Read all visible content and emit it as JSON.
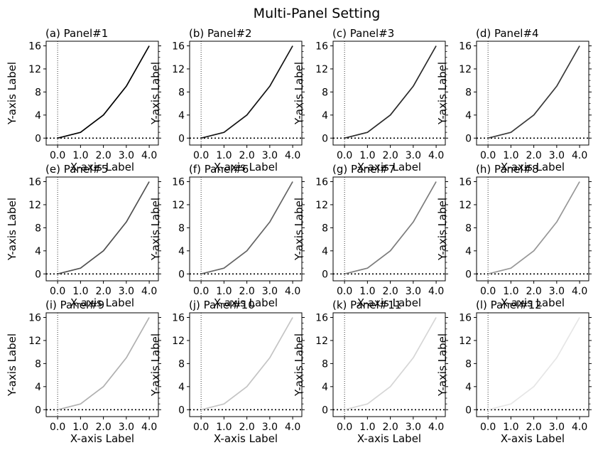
{
  "figure": {
    "title": "Multi-Panel Setting"
  },
  "chart_data": {
    "type": "line",
    "xlabel": "X-axis Label",
    "ylabel": "Y-axis Label",
    "x": [
      0,
      1,
      2,
      3,
      4
    ],
    "y": [
      0,
      1,
      4,
      9,
      16
    ],
    "xlim": [
      -0.5,
      4.4
    ],
    "ylim": [
      -1.2,
      16.8
    ],
    "xticks": [
      0,
      1,
      2,
      3,
      4
    ],
    "xtick_labels": [
      "0.0",
      "1.0",
      "2.0",
      "3.0",
      "4.0"
    ],
    "yticks": [
      0,
      4,
      8,
      12,
      16
    ],
    "ytick_labels": [
      "0",
      "4",
      "8",
      "12",
      "16"
    ],
    "yminor_step": 1,
    "reference_lines": {
      "horizontal_y": 0,
      "vertical_x": 0
    },
    "grid": false,
    "panels": [
      {
        "title": "(a) Panel#1",
        "color": "#000000"
      },
      {
        "title": "(b) Panel#2",
        "color": "#141414"
      },
      {
        "title": "(c) Panel#3",
        "color": "#2a2a2a"
      },
      {
        "title": "(d) Panel#4",
        "color": "#3a3a3a"
      },
      {
        "title": "(e) Panel#5",
        "color": "#505050"
      },
      {
        "title": "(f) Panel#6",
        "color": "#646464"
      },
      {
        "title": "(g) Panel#7",
        "color": "#7c7c7c"
      },
      {
        "title": "(h) Panel#8",
        "color": "#979797"
      },
      {
        "title": "(i) Panel#9",
        "color": "#b0b0b0"
      },
      {
        "title": "(j) Panel#10",
        "color": "#c4c4c4"
      },
      {
        "title": "(k) Panel#11",
        "color": "#d6d6d6"
      },
      {
        "title": "(l) Panel#12",
        "color": "#e6e6e6"
      }
    ]
  }
}
